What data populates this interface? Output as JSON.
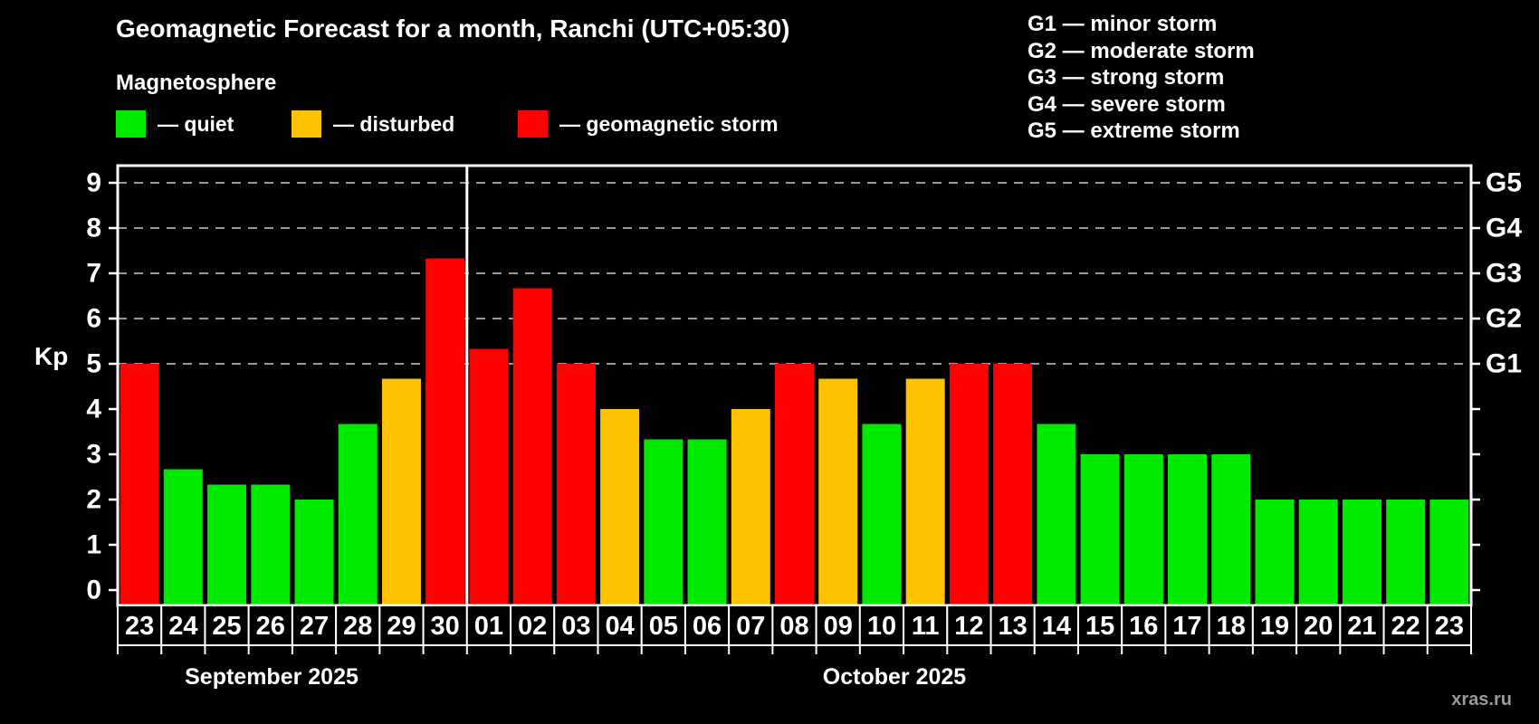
{
  "page": {
    "title": "Geomagnetic Forecast for a month, Ranchi (UTC+05:30)",
    "watermark": "xras.ru"
  },
  "legend": {
    "heading": "Magnetosphere",
    "items": [
      {
        "name": "quiet",
        "label": "— quiet",
        "color": "#00ea00"
      },
      {
        "name": "disturbed",
        "label": "— disturbed",
        "color": "#ffc200"
      },
      {
        "name": "storm",
        "label": "— geomagnetic storm",
        "color": "#ff0000"
      }
    ]
  },
  "g_legend": [
    {
      "code": "G1",
      "label": "G1 — minor storm"
    },
    {
      "code": "G2",
      "label": "G2 — moderate storm"
    },
    {
      "code": "G3",
      "label": "G3 — strong storm"
    },
    {
      "code": "G4",
      "label": "G4 — severe storm"
    },
    {
      "code": "G5",
      "label": "G5 — extreme storm"
    }
  ],
  "chart_data": {
    "type": "bar",
    "title": "Geomagnetic Forecast for a month, Ranchi (UTC+05:30)",
    "ylabel": "Kp",
    "ylim": [
      0,
      9.4
    ],
    "yticks": [
      0,
      1,
      2,
      3,
      4,
      5,
      6,
      7,
      8,
      9
    ],
    "grid_levels": [
      5,
      6,
      7,
      8,
      9
    ],
    "grid_color": "#999999",
    "right_axis": [
      {
        "level": 5,
        "label": "G1"
      },
      {
        "level": 6,
        "label": "G2"
      },
      {
        "level": 7,
        "label": "G3"
      },
      {
        "level": 8,
        "label": "G4"
      },
      {
        "level": 9,
        "label": "G5"
      }
    ],
    "status_colors": {
      "quiet": "#00ea00",
      "disturbed": "#ffc200",
      "storm": "#ff0000"
    },
    "month_sections": [
      {
        "label": "September 2025",
        "bar_count": 8,
        "label_center_x": 300
      },
      {
        "label": "October 2025",
        "bar_count": 23,
        "label_center_x": 988
      }
    ],
    "bars": [
      {
        "date": "23",
        "month": "September 2025",
        "value": 5,
        "status": "storm"
      },
      {
        "date": "24",
        "month": "September 2025",
        "value": 2.67,
        "status": "quiet"
      },
      {
        "date": "25",
        "month": "September 2025",
        "value": 2.33,
        "status": "quiet"
      },
      {
        "date": "26",
        "month": "September 2025",
        "value": 2.33,
        "status": "quiet"
      },
      {
        "date": "27",
        "month": "September 2025",
        "value": 2,
        "status": "quiet"
      },
      {
        "date": "28",
        "month": "September 2025",
        "value": 3.67,
        "status": "quiet"
      },
      {
        "date": "29",
        "month": "September 2025",
        "value": 4.67,
        "status": "disturbed"
      },
      {
        "date": "30",
        "month": "September 2025",
        "value": 7.33,
        "status": "storm"
      },
      {
        "date": "01",
        "month": "October 2025",
        "value": 5.33,
        "status": "storm"
      },
      {
        "date": "02",
        "month": "October 2025",
        "value": 6.67,
        "status": "storm"
      },
      {
        "date": "03",
        "month": "October 2025",
        "value": 5,
        "status": "storm"
      },
      {
        "date": "04",
        "month": "October 2025",
        "value": 4,
        "status": "disturbed"
      },
      {
        "date": "05",
        "month": "October 2025",
        "value": 3.33,
        "status": "quiet"
      },
      {
        "date": "06",
        "month": "October 2025",
        "value": 3.33,
        "status": "quiet"
      },
      {
        "date": "07",
        "month": "October 2025",
        "value": 4,
        "status": "disturbed"
      },
      {
        "date": "08",
        "month": "October 2025",
        "value": 5,
        "status": "storm"
      },
      {
        "date": "09",
        "month": "October 2025",
        "value": 4.67,
        "status": "disturbed"
      },
      {
        "date": "10",
        "month": "October 2025",
        "value": 3.67,
        "status": "quiet"
      },
      {
        "date": "11",
        "month": "October 2025",
        "value": 4.67,
        "status": "disturbed"
      },
      {
        "date": "12",
        "month": "October 2025",
        "value": 5,
        "status": "storm"
      },
      {
        "date": "13",
        "month": "October 2025",
        "value": 5,
        "status": "storm"
      },
      {
        "date": "14",
        "month": "October 2025",
        "value": 3.67,
        "status": "quiet"
      },
      {
        "date": "15",
        "month": "October 2025",
        "value": 3,
        "status": "quiet"
      },
      {
        "date": "16",
        "month": "October 2025",
        "value": 3,
        "status": "quiet"
      },
      {
        "date": "17",
        "month": "October 2025",
        "value": 3,
        "status": "quiet"
      },
      {
        "date": "18",
        "month": "October 2025",
        "value": 3,
        "status": "quiet"
      },
      {
        "date": "19",
        "month": "October 2025",
        "value": 2,
        "status": "quiet"
      },
      {
        "date": "20",
        "month": "October 2025",
        "value": 2,
        "status": "quiet"
      },
      {
        "date": "21",
        "month": "October 2025",
        "value": 2,
        "status": "quiet"
      },
      {
        "date": "22",
        "month": "October 2025",
        "value": 2,
        "status": "quiet"
      },
      {
        "date": "23",
        "month": "October 2025",
        "value": 2,
        "status": "quiet"
      }
    ]
  }
}
